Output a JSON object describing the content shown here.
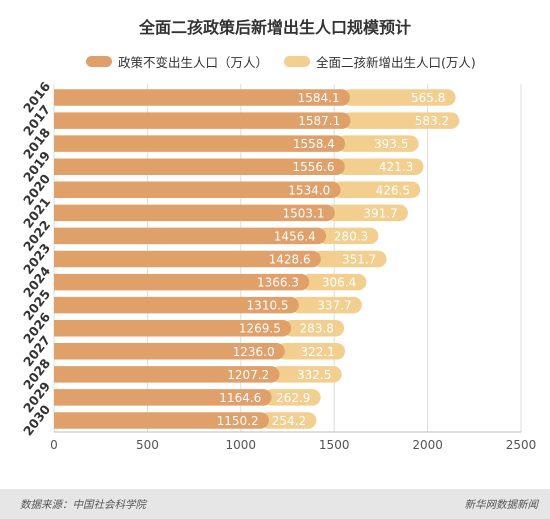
{
  "chart_data": {
    "type": "bar",
    "orientation": "horizontal",
    "stacked": true,
    "title": "全面二孩政策后新增出生人口规模预计",
    "legend_position": "top-center",
    "categories": [
      "2016",
      "2017",
      "2018",
      "2019",
      "2020",
      "2021",
      "2022",
      "2023",
      "2024",
      "2025",
      "2026",
      "2027",
      "2028",
      "2029",
      "2030"
    ],
    "series": [
      {
        "name": "政策不变出生人口（万人）",
        "color": "#E0A06A",
        "values": [
          1584.1,
          1587.1,
          1558.4,
          1556.6,
          1534.0,
          1503.1,
          1456.4,
          1428.6,
          1366.3,
          1310.5,
          1269.5,
          1236.0,
          1207.2,
          1164.6,
          1150.2
        ],
        "labels": [
          "1584.1",
          "1587.1",
          "1558.4",
          "1556.6",
          "1534.0",
          "1503.1",
          "1456.4",
          "1428.6",
          "1366.3",
          "1310.5",
          "1269.5",
          "1236.0",
          "1207.2",
          "1164.6",
          "1150.2"
        ]
      },
      {
        "name": "全面二孩新增出生人口(万人)",
        "color": "#F2CF8F",
        "values": [
          565.8,
          583.2,
          393.5,
          421.3,
          426.5,
          391.7,
          280.3,
          351.7,
          306.4,
          337.7,
          283.8,
          322.1,
          332.5,
          262.9,
          254.2
        ],
        "labels": [
          "565.8",
          "583.2",
          "393.5",
          "421.3",
          "426.5",
          "391.7",
          "280.3",
          "351.7",
          "306.4",
          "337.7",
          "283.8",
          "322.1",
          "332.5",
          "262.9",
          "254.2"
        ]
      }
    ],
    "xlim": [
      0,
      2500
    ],
    "xticks": [
      "0",
      "500",
      "1000",
      "1500",
      "2000",
      "2500"
    ],
    "grid": true
  },
  "footer": {
    "source": "数据来源：中国社会科学院",
    "brand": "新华网数据新闻"
  }
}
